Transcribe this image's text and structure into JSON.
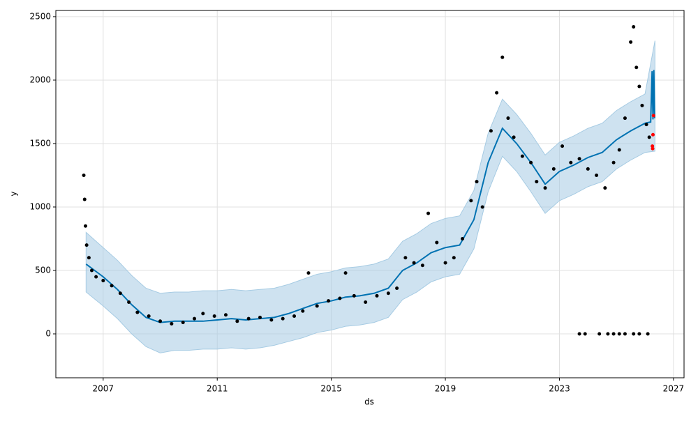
{
  "chart_data": {
    "type": "forecast",
    "x_label": "ds",
    "y_label": "y",
    "xlim": [
      2005.34,
      2027.37
    ],
    "ylim": [
      -346,
      2549
    ],
    "xticks": [
      2007,
      2011,
      2015,
      2019,
      2023,
      2027
    ],
    "yticks": [
      0,
      500,
      1000,
      1500,
      2000,
      2500
    ],
    "grid": true,
    "band": {
      "color": "#a6cbe3",
      "x": [
        2006.4,
        2007,
        2007.5,
        2008,
        2008.5,
        2009,
        2009.5,
        2010,
        2010.5,
        2011,
        2011.5,
        2012,
        2012.5,
        2013,
        2013.5,
        2014,
        2014.5,
        2015,
        2015.5,
        2016,
        2016.5,
        2017,
        2017.5,
        2018,
        2018.5,
        2019,
        2019.5,
        2020,
        2020.5,
        2021,
        2021.5,
        2022,
        2022.5,
        2023,
        2023.5,
        2024,
        2024.5,
        2025,
        2025.5,
        2026,
        2026.35
      ],
      "lower": [
        330,
        220,
        120,
        0,
        -100,
        -150,
        -130,
        -130,
        -120,
        -120,
        -110,
        -120,
        -110,
        -90,
        -60,
        -30,
        10,
        30,
        60,
        70,
        90,
        130,
        270,
        330,
        410,
        450,
        470,
        670,
        1120,
        1400,
        1280,
        1120,
        950,
        1050,
        1100,
        1160,
        1200,
        1300,
        1370,
        1430,
        1440
      ],
      "upper": [
        800,
        680,
        580,
        460,
        360,
        320,
        330,
        330,
        340,
        340,
        350,
        340,
        350,
        360,
        390,
        430,
        470,
        490,
        520,
        530,
        550,
        590,
        730,
        790,
        870,
        910,
        930,
        1130,
        1580,
        1850,
        1730,
        1580,
        1410,
        1510,
        1560,
        1620,
        1660,
        1760,
        1830,
        1890,
        2310
      ]
    },
    "series": [
      {
        "style": "line",
        "color": "#0072b2",
        "x": [
          2006.4,
          2007,
          2007.5,
          2008,
          2008.5,
          2009,
          2009.5,
          2010,
          2010.5,
          2011,
          2011.5,
          2012,
          2012.5,
          2013,
          2013.5,
          2014,
          2014.5,
          2015,
          2015.5,
          2016,
          2016.5,
          2017,
          2017.5,
          2018,
          2018.5,
          2019,
          2019.5,
          2020,
          2020.5,
          2021,
          2021.5,
          2022,
          2022.5,
          2023,
          2023.5,
          2024,
          2024.5,
          2025,
          2025.5,
          2026,
          2026.2,
          2026.25,
          2026.28,
          2026.31,
          2026.34
        ],
        "values": [
          550,
          450,
          350,
          230,
          130,
          90,
          100,
          100,
          100,
          110,
          120,
          110,
          120,
          130,
          160,
          200,
          240,
          260,
          290,
          300,
          320,
          360,
          500,
          560,
          640,
          680,
          700,
          900,
          1350,
          1620,
          1500,
          1350,
          1180,
          1280,
          1330,
          1390,
          1430,
          1530,
          1600,
          1660,
          1670,
          2070,
          1690,
          2080,
          1700
        ]
      },
      {
        "style": "points",
        "color": "#000000",
        "x": [
          2006.32,
          2006.35,
          2006.38,
          2006.42,
          2006.5,
          2006.6,
          2006.75,
          2007,
          2007.3,
          2007.6,
          2007.9,
          2008.2,
          2008.6,
          2009,
          2009.4,
          2009.8,
          2010.2,
          2010.5,
          2010.9,
          2011.3,
          2011.7,
          2012.1,
          2012.5,
          2012.9,
          2013.3,
          2013.7,
          2014,
          2014.2,
          2014.5,
          2014.9,
          2015.3,
          2015.5,
          2015.8,
          2016.2,
          2016.6,
          2017,
          2017.3,
          2017.6,
          2017.9,
          2018.2,
          2018.4,
          2018.7,
          2019,
          2019.3,
          2019.6,
          2019.9,
          2020.1,
          2020.3,
          2020.6,
          2020.8,
          2021,
          2021.2,
          2021.4,
          2021.7,
          2022,
          2022.2,
          2022.5,
          2022.8,
          2023.1,
          2023.4,
          2023.7,
          2024,
          2024.3,
          2024.6,
          2024.9,
          2025.1,
          2025.3,
          2025.5,
          2025.6,
          2025.7,
          2025.8,
          2025.9,
          2026.05,
          2026.15,
          2023.7,
          2023.9,
          2024.4,
          2024.7,
          2024.9,
          2025.1,
          2025.3,
          2025.6,
          2025.8,
          2026.1
        ],
        "values": [
          1250,
          1060,
          850,
          700,
          600,
          500,
          450,
          420,
          380,
          320,
          250,
          170,
          140,
          100,
          80,
          90,
          120,
          160,
          140,
          150,
          100,
          120,
          130,
          110,
          120,
          140,
          180,
          480,
          220,
          260,
          280,
          480,
          300,
          250,
          300,
          320,
          360,
          600,
          560,
          540,
          950,
          720,
          560,
          600,
          750,
          1050,
          1200,
          1000,
          1600,
          1900,
          2180,
          1700,
          1550,
          1400,
          1350,
          1200,
          1150,
          1300,
          1480,
          1350,
          1380,
          1300,
          1250,
          1150,
          1350,
          1450,
          1700,
          2300,
          2420,
          2100,
          1950,
          1800,
          1650,
          1550,
          0,
          0,
          0,
          0,
          0,
          0,
          0,
          0,
          0,
          0
        ]
      },
      {
        "style": "points",
        "color": "#ff0000",
        "x": [
          2026.3,
          2026.28,
          2026.26,
          2026.27
        ],
        "values": [
          1720,
          1570,
          1480,
          1460
        ]
      }
    ]
  }
}
